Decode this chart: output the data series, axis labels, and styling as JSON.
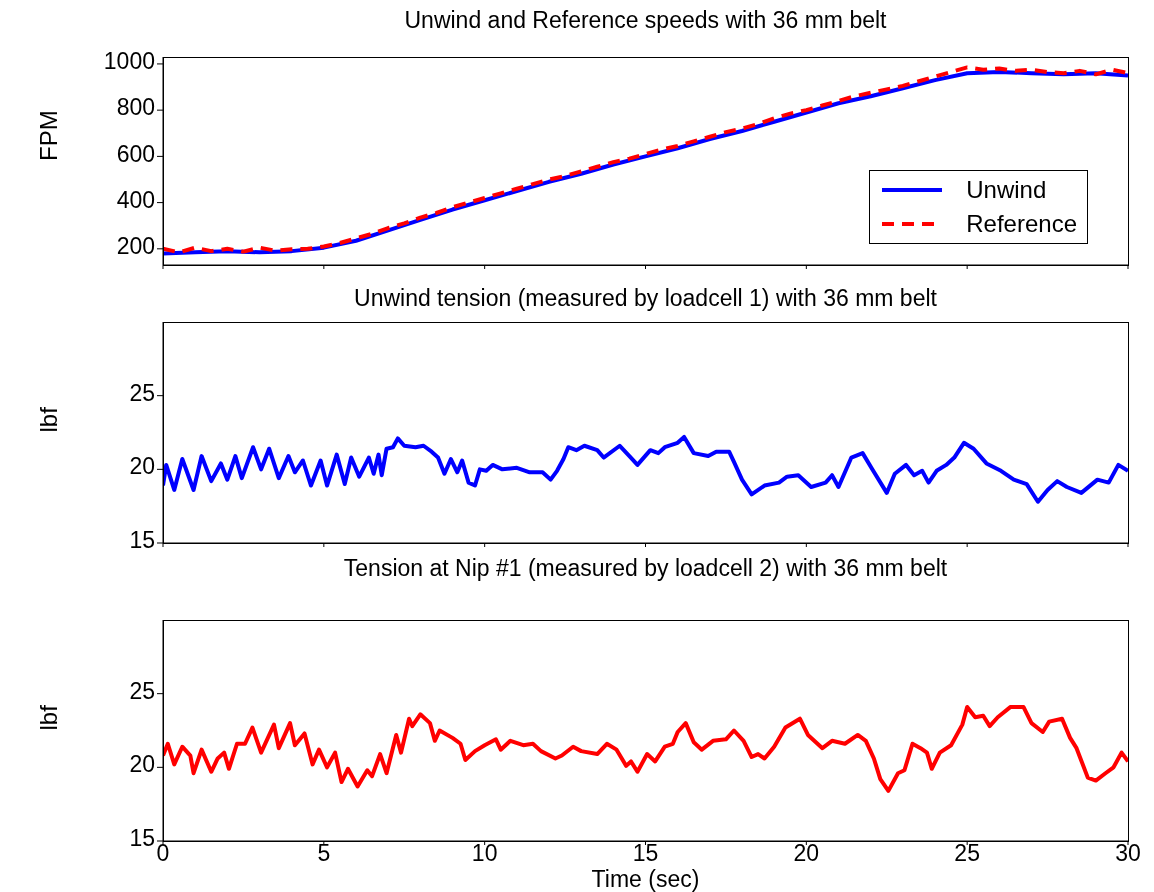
{
  "chart_data": [
    {
      "type": "line",
      "title": "Unwind and Reference speeds with 36 mm belt",
      "ylabel": "FPM",
      "xlim": [
        0,
        30
      ],
      "xticks": [
        0,
        5,
        10,
        15,
        20,
        25,
        30
      ],
      "ylim": [
        130,
        1030
      ],
      "yticks": [
        200,
        400,
        600,
        800,
        1000
      ],
      "tick_labels": "y",
      "legend": "bottom right",
      "grid": false,
      "series": [
        {
          "name": "Unwind",
          "color": "#0000ff",
          "line_style": "solid",
          "x": [
            0,
            1,
            2,
            3,
            4,
            5,
            6,
            7,
            8,
            9,
            10,
            11,
            12,
            13,
            14,
            15,
            16,
            17,
            18,
            19,
            20,
            21,
            22,
            23,
            24,
            25,
            26,
            27,
            28,
            29,
            30
          ],
          "values": [
            180,
            185,
            190,
            185,
            190,
            205,
            235,
            280,
            325,
            370,
            410,
            450,
            490,
            525,
            565,
            600,
            635,
            675,
            710,
            750,
            790,
            830,
            860,
            895,
            930,
            960,
            965,
            960,
            955,
            960,
            950
          ]
        },
        {
          "name": "Reference",
          "color": "#ff0000",
          "line_style": "dashed",
          "x": [
            0,
            0.5,
            1,
            1.5,
            2,
            2.5,
            3,
            3.5,
            4,
            4.5,
            5,
            5.5,
            6,
            6.5,
            7,
            7.5,
            8,
            8.5,
            9,
            9.5,
            10,
            10.5,
            11,
            11.5,
            12,
            12.5,
            13,
            13.5,
            14,
            14.5,
            15,
            15.5,
            16,
            16.5,
            17,
            17.5,
            18,
            18.5,
            19,
            19.5,
            20,
            20.5,
            21,
            21.5,
            22,
            22.5,
            23,
            23.5,
            24,
            24.5,
            25,
            25.5,
            26,
            26.5,
            27,
            27.5,
            28,
            28.5,
            29,
            29.5,
            30
          ],
          "values": [
            200,
            185,
            205,
            190,
            200,
            188,
            205,
            192,
            198,
            200,
            210,
            225,
            245,
            265,
            290,
            310,
            335,
            355,
            380,
            400,
            420,
            440,
            460,
            480,
            500,
            515,
            535,
            555,
            575,
            590,
            610,
            630,
            645,
            665,
            685,
            705,
            720,
            740,
            765,
            785,
            800,
            820,
            840,
            860,
            875,
            890,
            905,
            925,
            945,
            965,
            985,
            975,
            980,
            970,
            975,
            965,
            960,
            970,
            955,
            975,
            960
          ]
        }
      ]
    },
    {
      "type": "line",
      "title": "Unwind tension (measured by loadcell 1)  with 36 mm belt",
      "ylabel": "lbf",
      "xlim": [
        0,
        30
      ],
      "xticks": [
        0,
        5,
        10,
        15,
        20,
        25,
        30
      ],
      "ylim": [
        15,
        30
      ],
      "yticks": [
        15,
        20,
        25
      ],
      "tick_labels": "y",
      "grid": false,
      "series": [
        {
          "color": "#0000ff",
          "x": [
            0,
            0.1,
            0.35,
            0.6,
            0.95,
            1.2,
            1.5,
            1.8,
            2.0,
            2.25,
            2.45,
            2.8,
            3.05,
            3.3,
            3.6,
            3.9,
            4.1,
            4.35,
            4.6,
            4.9,
            5.1,
            5.4,
            5.65,
            5.85,
            6.1,
            6.4,
            6.55,
            6.7,
            6.8,
            6.95,
            7.15,
            7.3,
            7.5,
            7.85,
            8.1,
            8.35,
            8.55,
            8.75,
            8.95,
            9.15,
            9.3,
            9.5,
            9.7,
            9.85,
            10.05,
            10.25,
            10.55,
            11.0,
            11.4,
            11.8,
            12.05,
            12.25,
            12.45,
            12.6,
            12.85,
            13.1,
            13.5,
            13.7,
            14.2,
            14.5,
            14.75,
            15.15,
            15.4,
            15.6,
            16.0,
            16.2,
            16.5,
            16.95,
            17.2,
            17.6,
            17.75,
            18.0,
            18.3,
            18.7,
            19.15,
            19.4,
            19.75,
            20.15,
            20.6,
            20.8,
            21.0,
            21.4,
            21.75,
            22.05,
            22.5,
            22.75,
            23.1,
            23.35,
            23.6,
            23.8,
            24.05,
            24.35,
            24.6,
            24.9,
            25.2,
            25.6,
            26.05,
            26.45,
            26.85,
            27.2,
            27.5,
            27.8,
            28.1,
            28.55,
            29.05,
            29.4,
            29.7,
            30
          ],
          "values": [
            18.9,
            20.3,
            18.6,
            20.7,
            18.6,
            20.9,
            19.2,
            20.4,
            19.3,
            20.9,
            19.4,
            21.5,
            20.0,
            21.4,
            19.4,
            20.9,
            19.8,
            20.6,
            18.9,
            20.6,
            18.9,
            21.0,
            19.0,
            20.8,
            19.5,
            20.8,
            19.7,
            21.0,
            19.6,
            21.4,
            21.5,
            22.1,
            21.6,
            21.5,
            21.6,
            21.2,
            20.8,
            19.7,
            20.7,
            19.8,
            20.6,
            19.1,
            18.9,
            20.0,
            19.9,
            20.3,
            20.0,
            20.1,
            19.8,
            19.8,
            19.3,
            19.9,
            20.7,
            21.5,
            21.3,
            21.6,
            21.3,
            20.8,
            21.6,
            20.9,
            20.3,
            21.3,
            21.1,
            21.5,
            21.8,
            22.2,
            21.1,
            20.9,
            21.2,
            21.2,
            20.5,
            19.3,
            18.3,
            18.9,
            19.1,
            19.5,
            19.6,
            18.8,
            19.1,
            19.6,
            18.8,
            20.8,
            21.1,
            20.0,
            18.4,
            19.7,
            20.3,
            19.6,
            19.9,
            19.1,
            19.9,
            20.3,
            20.8,
            21.8,
            21.4,
            20.4,
            19.9,
            19.3,
            19.0,
            17.8,
            18.6,
            19.2,
            18.8,
            18.4,
            19.3,
            19.1,
            20.3,
            19.9
          ]
        }
      ]
    },
    {
      "type": "line",
      "title": "Tension at Nip #1 (measured by loadcell 2)  with 36 mm belt",
      "xlabel": "Time (sec)",
      "ylabel": "lbf",
      "xlim": [
        0,
        30
      ],
      "xticks": [
        0,
        5,
        10,
        15,
        20,
        25,
        30
      ],
      "ylim": [
        15,
        30
      ],
      "yticks": [
        15,
        20,
        25
      ],
      "grid": false,
      "series": [
        {
          "color": "#ff0000",
          "x": [
            0,
            0.15,
            0.35,
            0.6,
            0.85,
            0.95,
            1.2,
            1.5,
            1.7,
            1.9,
            2.05,
            2.3,
            2.55,
            2.78,
            3.05,
            3.45,
            3.6,
            3.95,
            4.1,
            4.4,
            4.65,
            4.85,
            5.1,
            5.35,
            5.55,
            5.75,
            6.05,
            6.35,
            6.5,
            6.75,
            6.95,
            7.25,
            7.4,
            7.65,
            7.75,
            8.0,
            8.3,
            8.45,
            8.6,
            9.0,
            9.25,
            9.4,
            9.7,
            10.0,
            10.35,
            10.5,
            10.8,
            11.2,
            11.5,
            11.75,
            12.2,
            12.4,
            12.75,
            13.0,
            13.5,
            13.8,
            14.1,
            14.4,
            14.55,
            14.75,
            15.05,
            15.3,
            15.6,
            15.85,
            16.0,
            16.25,
            16.5,
            16.75,
            17.1,
            17.5,
            17.75,
            18.05,
            18.3,
            18.5,
            18.7,
            19.0,
            19.35,
            19.8,
            20.05,
            20.5,
            20.8,
            21.2,
            21.6,
            21.85,
            22.1,
            22.3,
            22.55,
            22.85,
            23.05,
            23.3,
            23.55,
            23.75,
            23.9,
            24.15,
            24.5,
            24.85,
            25.0,
            25.25,
            25.5,
            25.7,
            25.95,
            26.35,
            26.75,
            27.0,
            27.35,
            27.55,
            27.95,
            28.2,
            28.4,
            28.75,
            29.0,
            29.3,
            29.55,
            29.8,
            30
          ],
          "values": [
            20.8,
            21.6,
            20.2,
            21.4,
            20.8,
            19.6,
            21.2,
            19.7,
            20.6,
            21.0,
            19.9,
            21.6,
            21.6,
            22.7,
            21.0,
            22.9,
            21.3,
            23.0,
            21.5,
            22.3,
            20.2,
            21.2,
            20.0,
            21.0,
            19.0,
            19.9,
            18.7,
            19.8,
            19.4,
            20.9,
            19.6,
            22.2,
            21.0,
            23.3,
            22.8,
            23.6,
            23.0,
            21.8,
            22.5,
            22.0,
            21.6,
            20.5,
            21.1,
            21.5,
            21.9,
            21.2,
            21.8,
            21.5,
            21.6,
            21.1,
            20.6,
            20.8,
            21.4,
            21.1,
            20.9,
            21.6,
            21.2,
            20.1,
            20.4,
            19.7,
            20.9,
            20.4,
            21.4,
            21.6,
            22.4,
            23.0,
            21.7,
            21.2,
            21.8,
            21.9,
            22.5,
            21.8,
            20.7,
            20.9,
            20.6,
            21.4,
            22.7,
            23.3,
            22.2,
            21.3,
            21.8,
            21.6,
            22.2,
            21.8,
            20.6,
            19.2,
            18.4,
            19.6,
            19.8,
            21.6,
            21.3,
            21.0,
            19.9,
            21.0,
            21.5,
            22.9,
            24.1,
            23.4,
            23.5,
            22.8,
            23.4,
            24.1,
            24.1,
            23.0,
            22.4,
            23.1,
            23.3,
            22.0,
            21.3,
            19.3,
            19.1,
            19.6,
            20.0,
            21.0,
            20.4
          ]
        }
      ]
    }
  ]
}
